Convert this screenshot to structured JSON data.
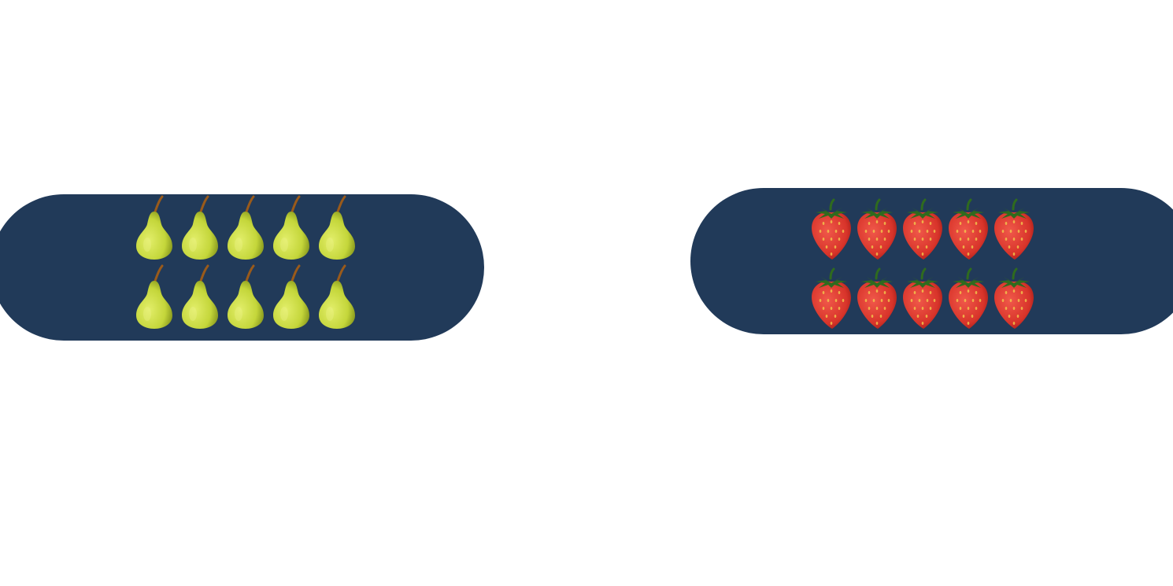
{
  "background_color": "#ffffff",
  "panel_color": "#213a59",
  "panels": [
    {
      "name": "pears-panel",
      "fruit_icon": "pear-icon",
      "count": 10,
      "rows": 2,
      "columns": 5,
      "fruit_body_color": "#c4d63a",
      "fruit_stem_color": "#9a5a1a"
    },
    {
      "name": "strawberries-panel",
      "fruit_icon": "strawberry-icon",
      "count": 10,
      "rows": 2,
      "columns": 5,
      "fruit_body_color": "#d8342a",
      "fruit_leaf_color": "#2f6b1e"
    }
  ]
}
